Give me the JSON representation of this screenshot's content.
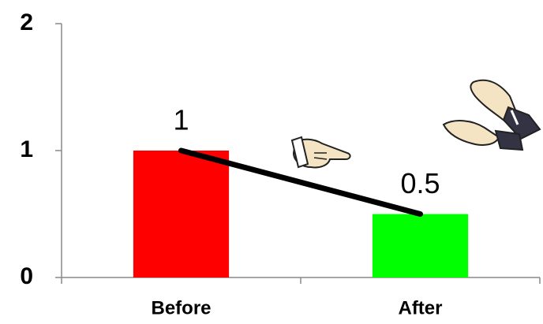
{
  "chart_data": {
    "type": "bar",
    "categories": [
      "Before",
      "After"
    ],
    "values": [
      1,
      0.5
    ],
    "colors": [
      "#ff0000",
      "#00ff00"
    ],
    "ylim": [
      0,
      2
    ],
    "yticks": [
      0,
      1,
      2
    ],
    "connector_line": true
  }
}
